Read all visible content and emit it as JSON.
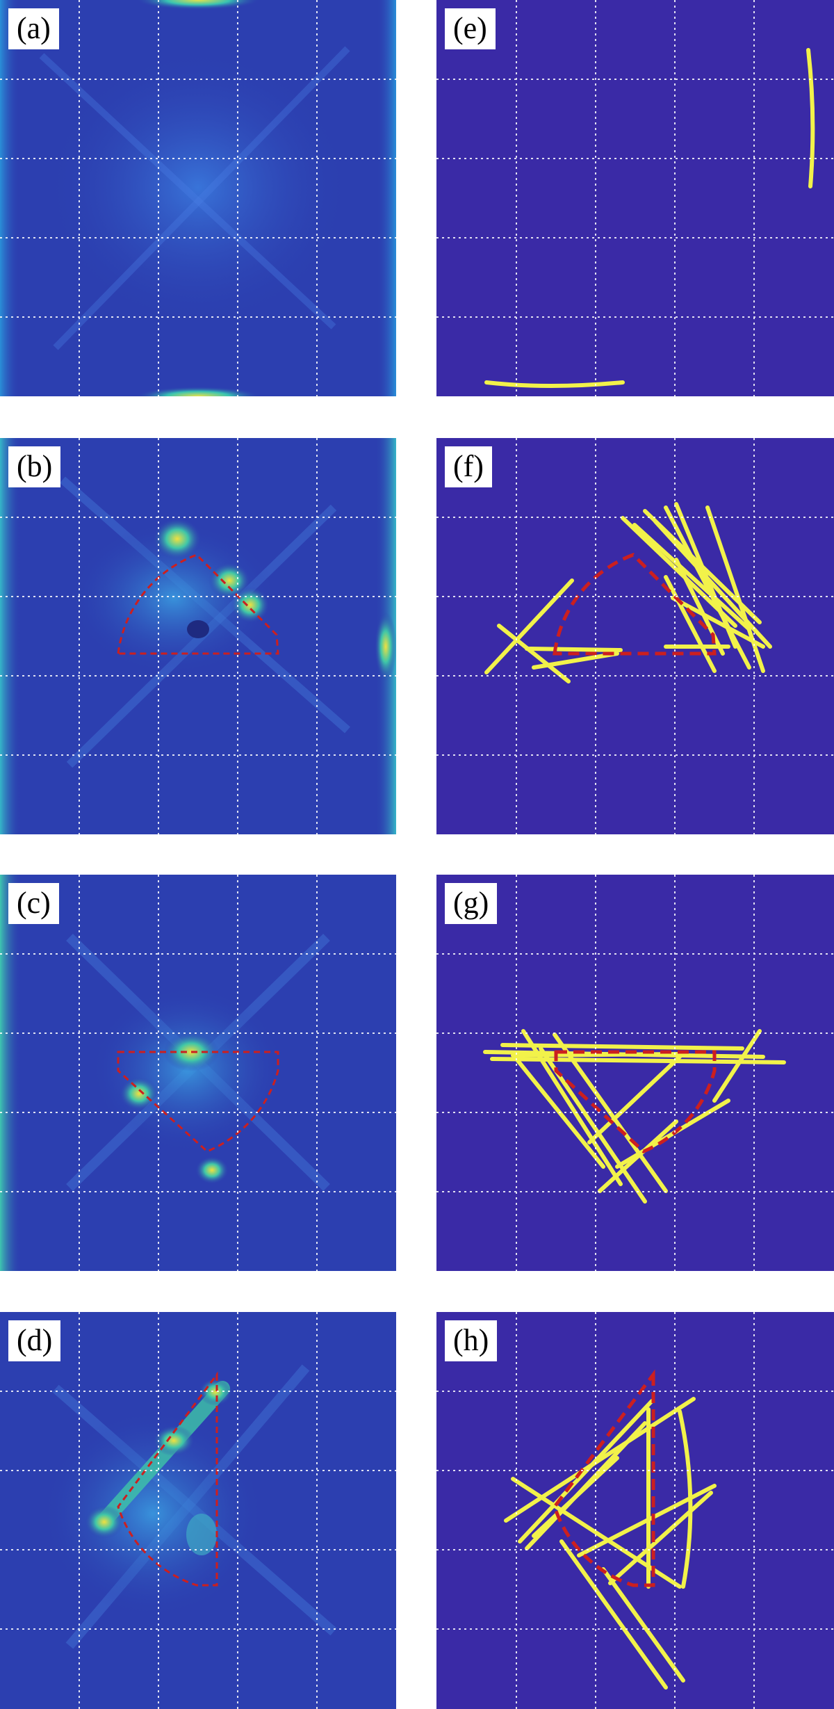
{
  "figure": {
    "panels": [
      {
        "id": "a",
        "label": "(a)",
        "kind": "heatmap"
      },
      {
        "id": "e",
        "label": "(e)",
        "kind": "binary"
      },
      {
        "id": "b",
        "label": "(b)",
        "kind": "heatmap"
      },
      {
        "id": "f",
        "label": "(f)",
        "kind": "binary"
      },
      {
        "id": "c",
        "label": "(c)",
        "kind": "heatmap"
      },
      {
        "id": "g",
        "label": "(g)",
        "kind": "binary"
      },
      {
        "id": "d",
        "label": "(d)",
        "kind": "heatmap"
      },
      {
        "id": "h",
        "label": "(h)",
        "kind": "binary"
      }
    ],
    "colors": {
      "heatmap_background": "#2c3fb0",
      "binary_background": "#3a2aa6",
      "feature_line": "#f2f24a",
      "outline_dashed": "#cc1f1f",
      "grid": "#ffffff"
    }
  }
}
